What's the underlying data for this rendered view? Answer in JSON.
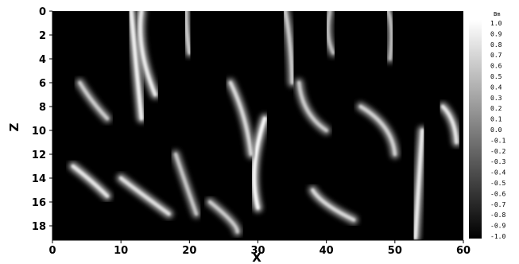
{
  "chart_data": {
    "type": "heatmap",
    "xlabel": "X",
    "ylabel": "Z",
    "xlim": [
      0,
      60
    ],
    "ylim": [
      19.2,
      0
    ],
    "x_ticks": [
      0,
      10,
      20,
      30,
      40,
      50,
      60
    ],
    "y_ticks": [
      0,
      2,
      4,
      6,
      8,
      10,
      12,
      14,
      16,
      18
    ],
    "colorbar": {
      "title": "Bm",
      "range": [
        -1.0,
        1.0
      ],
      "tick_labels": [
        "1.0",
        "0.9",
        "0.8",
        "0.7",
        "0.6",
        "0.5",
        "0.4",
        "0.3",
        "0.2",
        "0.1",
        "0.0",
        "-0.1",
        "-0.2",
        "-0.3",
        "-0.4",
        "-0.5",
        "-0.6",
        "-0.7",
        "-0.8",
        "-0.9",
        "-1.0"
      ]
    },
    "colormap": {
      "low": "#000000",
      "high": "#ffffff"
    },
    "field_description_values": {
      "background_level": -1.0,
      "filaments": [
        {
          "x0": 11.5,
          "z0": 0.0,
          "x1": 13.0,
          "z1": 9.0,
          "peak": 0.9
        },
        {
          "x0": 13.0,
          "z0": 0.0,
          "x1": 15.0,
          "z1": 7.0,
          "peak": 0.85
        },
        {
          "x0": 19.5,
          "z0": 0.0,
          "x1": 20.0,
          "z1": 3.5,
          "peak": 0.6
        },
        {
          "x0": 31.0,
          "z0": 9.0,
          "x1": 30.0,
          "z1": 16.5,
          "peak": 0.95
        },
        {
          "x0": 34.0,
          "z0": 0.0,
          "x1": 35.0,
          "z1": 6.0,
          "peak": 0.6
        },
        {
          "x0": 40.5,
          "z0": 0.0,
          "x1": 41.0,
          "z1": 3.5,
          "peak": 0.5
        },
        {
          "x0": 49.0,
          "z0": 0.0,
          "x1": 49.3,
          "z1": 4.0,
          "peak": 0.5
        },
        {
          "x0": 54.0,
          "z0": 10.0,
          "x1": 53.0,
          "z1": 19.0,
          "peak": 0.85
        },
        {
          "x0": 57.0,
          "z0": 8.0,
          "x1": 59.0,
          "z1": 11.0,
          "peak": 0.8
        },
        {
          "x0": 3.0,
          "z0": 13.0,
          "x1": 8.0,
          "z1": 15.5,
          "peak": 0.8
        },
        {
          "x0": 10.0,
          "z0": 14.0,
          "x1": 17.0,
          "z1": 17.0,
          "peak": 0.75
        },
        {
          "x0": 23.0,
          "z0": 16.0,
          "x1": 27.0,
          "z1": 18.5,
          "peak": 0.6
        },
        {
          "x0": 38.0,
          "z0": 15.0,
          "x1": 44.0,
          "z1": 17.5,
          "peak": 0.7
        },
        {
          "x0": 45.0,
          "z0": 8.0,
          "x1": 50.0,
          "z1": 12.0,
          "peak": 0.65
        },
        {
          "x0": 4.0,
          "z0": 6.0,
          "x1": 8.0,
          "z1": 9.0,
          "peak": 0.6
        },
        {
          "x0": 26.0,
          "z0": 6.0,
          "x1": 29.0,
          "z1": 12.0,
          "peak": 0.7
        },
        {
          "x0": 36.0,
          "z0": 6.0,
          "x1": 40.0,
          "z1": 10.0,
          "peak": 0.6
        },
        {
          "x0": 18.0,
          "z0": 12.0,
          "x1": 21.0,
          "z1": 17.0,
          "peak": 0.55
        }
      ]
    }
  }
}
